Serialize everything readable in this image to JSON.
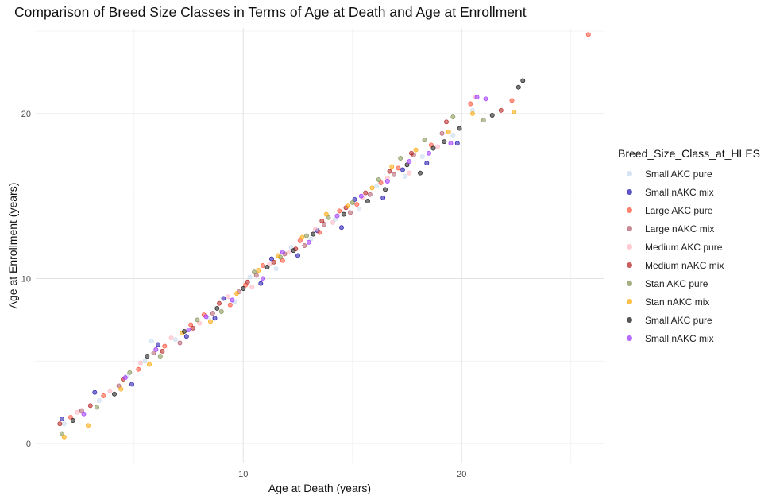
{
  "chart_data": {
    "type": "scatter",
    "title": "Comparison of Breed Size Classes in Terms of Age at Death and Age at Enrollment",
    "xlabel": "Age at Death (years)",
    "ylabel": "Age at Enrollment (years)",
    "xlim": [
      0.5,
      26.5
    ],
    "ylim": [
      -1.2,
      25.2
    ],
    "x_ticks": [
      10,
      20
    ],
    "y_ticks": [
      0,
      10,
      20
    ],
    "grid": true,
    "legend_title": "Breed_Size_Class_at_HLES",
    "legend_position": "right",
    "series": [
      {
        "name": "Small AKC pure",
        "color": "#c6dbef",
        "points": [
          [
            1.8,
            1.2
          ],
          [
            3.4,
            2.6
          ],
          [
            4.7,
            4.1
          ],
          [
            5.5,
            5.0
          ],
          [
            5.8,
            6.2
          ],
          [
            6.9,
            6.3
          ],
          [
            8.4,
            7.6
          ],
          [
            9.6,
            8.6
          ],
          [
            10.3,
            10.1
          ],
          [
            11.5,
            10.6
          ],
          [
            12.2,
            11.9
          ],
          [
            13.1,
            12.4
          ],
          [
            14.2,
            13.6
          ],
          [
            15.3,
            14.2
          ],
          [
            16.1,
            15.6
          ],
          [
            17.4,
            16.2
          ],
          [
            18.2,
            17.4
          ],
          [
            19.6,
            18.7
          ],
          [
            20.5,
            20.2
          ]
        ]
      },
      {
        "name": "Small nAKC mix",
        "color": "#1a0dab",
        "points": [
          [
            1.7,
            1.5
          ],
          [
            3.2,
            3.1
          ],
          [
            4.9,
            3.6
          ],
          [
            6.1,
            6.0
          ],
          [
            7.4,
            6.5
          ],
          [
            8.7,
            7.6
          ],
          [
            9.1,
            8.8
          ],
          [
            10.8,
            9.7
          ],
          [
            11.3,
            11.2
          ],
          [
            12.5,
            11.4
          ],
          [
            13.4,
            12.9
          ],
          [
            14.5,
            13.1
          ],
          [
            15.1,
            14.8
          ],
          [
            16.4,
            14.9
          ],
          [
            17.3,
            16.6
          ],
          [
            18.4,
            17.0
          ],
          [
            19.8,
            18.2
          ]
        ]
      },
      {
        "name": "Large AKC pure",
        "color": "#ff4d33",
        "points": [
          [
            2.1,
            1.6
          ],
          [
            3.6,
            2.9
          ],
          [
            5.2,
            4.5
          ],
          [
            6.4,
            5.9
          ],
          [
            7.6,
            7.2
          ],
          [
            8.2,
            7.8
          ],
          [
            9.4,
            8.4
          ],
          [
            10.1,
            9.6
          ],
          [
            10.9,
            10.8
          ],
          [
            11.8,
            11.1
          ],
          [
            12.6,
            12.3
          ],
          [
            13.5,
            12.8
          ],
          [
            14.4,
            14.1
          ],
          [
            15.2,
            14.5
          ],
          [
            16.3,
            15.8
          ],
          [
            17.1,
            16.7
          ],
          [
            18.6,
            18.1
          ],
          [
            20.4,
            20.6
          ],
          [
            22.3,
            20.8
          ],
          [
            25.8,
            24.8
          ]
        ]
      },
      {
        "name": "Large nAKC mix",
        "color": "#b05a6a",
        "points": [
          [
            2.6,
            2.0
          ],
          [
            4.3,
            3.5
          ],
          [
            5.9,
            5.5
          ],
          [
            7.1,
            6.1
          ],
          [
            8.6,
            7.9
          ],
          [
            9.8,
            9.2
          ],
          [
            10.6,
            10.2
          ],
          [
            11.9,
            11.5
          ],
          [
            12.8,
            12.0
          ],
          [
            13.7,
            13.3
          ],
          [
            14.9,
            14.0
          ],
          [
            15.8,
            15.1
          ],
          [
            16.9,
            16.3
          ],
          [
            17.8,
            17.5
          ],
          [
            19.1,
            18.8
          ]
        ]
      },
      {
        "name": "Medium AKC pure",
        "color": "#ffb6c1",
        "points": [
          [
            2.4,
            1.9
          ],
          [
            3.9,
            3.2
          ],
          [
            5.3,
            4.9
          ],
          [
            6.7,
            6.4
          ],
          [
            8.0,
            7.3
          ],
          [
            9.3,
            8.9
          ],
          [
            10.4,
            9.5
          ],
          [
            11.2,
            10.9
          ],
          [
            12.1,
            11.6
          ],
          [
            13.3,
            13.0
          ],
          [
            14.1,
            13.4
          ],
          [
            15.5,
            14.9
          ],
          [
            16.6,
            16.1
          ],
          [
            17.6,
            16.4
          ],
          [
            18.9,
            18.0
          ],
          [
            20.6,
            21.0
          ]
        ]
      },
      {
        "name": "Medium nAKC mix",
        "color": "#b31b1b",
        "points": [
          [
            1.6,
            1.2
          ],
          [
            3.0,
            2.3
          ],
          [
            4.5,
            3.9
          ],
          [
            6.3,
            5.6
          ],
          [
            7.7,
            7.0
          ],
          [
            8.9,
            8.5
          ],
          [
            10.2,
            9.8
          ],
          [
            11.4,
            11.0
          ],
          [
            12.4,
            11.8
          ],
          [
            13.6,
            13.5
          ],
          [
            14.7,
            14.3
          ],
          [
            15.6,
            15.2
          ],
          [
            16.7,
            16.5
          ],
          [
            17.7,
            17.6
          ],
          [
            19.3,
            19.5
          ],
          [
            21.8,
            20.2
          ]
        ]
      },
      {
        "name": "Stan AKC pure",
        "color": "#7f8f4f",
        "points": [
          [
            1.7,
            0.6
          ],
          [
            3.3,
            2.2
          ],
          [
            4.8,
            4.3
          ],
          [
            6.2,
            5.3
          ],
          [
            7.9,
            7.5
          ],
          [
            9.0,
            8.0
          ],
          [
            10.5,
            10.4
          ],
          [
            11.7,
            11.3
          ],
          [
            12.9,
            12.6
          ],
          [
            13.9,
            13.7
          ],
          [
            15.0,
            14.6
          ],
          [
            16.2,
            16.0
          ],
          [
            17.2,
            17.3
          ],
          [
            18.3,
            18.4
          ],
          [
            19.6,
            19.8
          ],
          [
            21.0,
            19.6
          ]
        ]
      },
      {
        "name": "Stan nAKC mix",
        "color": "#ffa500",
        "points": [
          [
            1.8,
            0.4
          ],
          [
            2.9,
            1.1
          ],
          [
            4.4,
            3.3
          ],
          [
            5.7,
            4.8
          ],
          [
            7.2,
            6.7
          ],
          [
            8.5,
            7.4
          ],
          [
            9.7,
            9.1
          ],
          [
            10.7,
            10.5
          ],
          [
            11.6,
            11.4
          ],
          [
            12.7,
            12.5
          ],
          [
            13.8,
            13.9
          ],
          [
            14.8,
            14.4
          ],
          [
            15.9,
            15.5
          ],
          [
            16.8,
            16.8
          ],
          [
            17.9,
            17.8
          ],
          [
            19.4,
            18.9
          ],
          [
            20.5,
            20.0
          ],
          [
            22.4,
            20.1
          ]
        ]
      },
      {
        "name": "Small AKC pure",
        "color": "#111111",
        "points": [
          [
            2.2,
            1.4
          ],
          [
            4.1,
            3.0
          ],
          [
            5.6,
            5.3
          ],
          [
            7.3,
            6.8
          ],
          [
            8.8,
            8.2
          ],
          [
            10.0,
            9.4
          ],
          [
            11.1,
            10.7
          ],
          [
            12.3,
            11.7
          ],
          [
            13.2,
            12.7
          ],
          [
            14.6,
            13.9
          ],
          [
            15.7,
            14.7
          ],
          [
            16.5,
            15.4
          ],
          [
            17.5,
            16.9
          ],
          [
            18.1,
            16.4
          ],
          [
            18.7,
            17.9
          ],
          [
            19.2,
            18.3
          ],
          [
            19.9,
            19.1
          ],
          [
            21.4,
            19.9
          ],
          [
            22.6,
            21.6
          ],
          [
            22.8,
            22.0
          ]
        ]
      },
      {
        "name": "Small nAKC mix",
        "color": "#9b30ff",
        "points": [
          [
            2.7,
            1.8
          ],
          [
            4.6,
            4.0
          ],
          [
            6.0,
            5.7
          ],
          [
            7.5,
            6.9
          ],
          [
            8.3,
            7.7
          ],
          [
            9.5,
            8.7
          ],
          [
            10.9,
            10.0
          ],
          [
            11.8,
            11.6
          ],
          [
            13.0,
            12.2
          ],
          [
            14.3,
            13.8
          ],
          [
            15.4,
            15.0
          ],
          [
            16.6,
            15.9
          ],
          [
            17.6,
            17.1
          ],
          [
            18.5,
            17.6
          ],
          [
            19.5,
            18.2
          ],
          [
            20.7,
            21.0
          ],
          [
            21.1,
            20.9
          ]
        ]
      }
    ]
  }
}
